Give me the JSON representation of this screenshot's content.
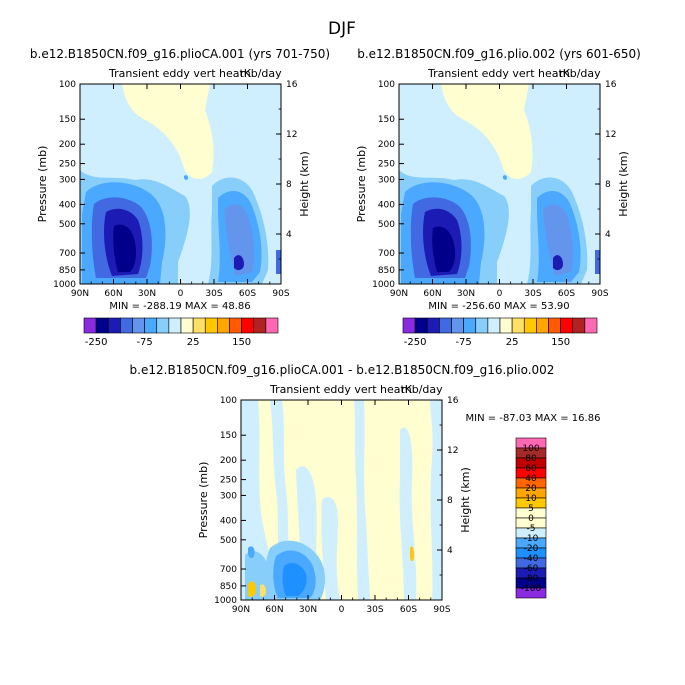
{
  "page_title": "DJF",
  "chart_data": [
    {
      "type": "heatmap",
      "case_title": "b.e12.B1850CN.f09_g16.plioCA.001 (yrs 701-750)",
      "title": "Transient eddy vert heatK",
      "units": "mb/day",
      "xlabel": "",
      "ylabel": "Pressure (mb)",
      "y2label": "Height (km)",
      "x_ticks": [
        "90N",
        "60N",
        "30N",
        "0",
        "30S",
        "60S",
        "90S"
      ],
      "y_ticks": [
        "100",
        "150",
        "200",
        "250",
        "300",
        "400",
        "500",
        "700",
        "850",
        "1000"
      ],
      "y2_ticks": [
        "4",
        "8",
        "12",
        "16"
      ],
      "stats": "MIN = -288.19   MAX =  48.86",
      "colorbar_labels": [
        "-250",
        "-75",
        "25",
        "150"
      ]
    },
    {
      "type": "heatmap",
      "case_title": "b.e12.B1850CN.f09_g16.plio.002 (yrs 601-650)",
      "title": "Transient eddy vert heatK",
      "units": "mb/day",
      "xlabel": "",
      "ylabel": "Pressure (mb)",
      "y2label": "Height (km)",
      "x_ticks": [
        "90N",
        "60N",
        "30N",
        "0",
        "30S",
        "60S",
        "90S"
      ],
      "y_ticks": [
        "100",
        "150",
        "200",
        "250",
        "300",
        "400",
        "500",
        "700",
        "850",
        "1000"
      ],
      "y2_ticks": [
        "4",
        "8",
        "12",
        "16"
      ],
      "stats": "MIN = -256.60   MAX =  53.90",
      "colorbar_labels": [
        "-250",
        "-75",
        "25",
        "150"
      ]
    },
    {
      "type": "heatmap",
      "case_title": "b.e12.B1850CN.f09_g16.plioCA.001 - b.e12.B1850CN.f09_g16.plio.002",
      "title": "Transient eddy vert heatK",
      "units": "mb/day",
      "xlabel": "",
      "ylabel": "Pressure (mb)",
      "y2label": "Height (km)",
      "x_ticks": [
        "90N",
        "60N",
        "30N",
        "0",
        "30S",
        "60S",
        "90S"
      ],
      "y_ticks": [
        "100",
        "150",
        "200",
        "250",
        "300",
        "400",
        "500",
        "700",
        "850",
        "1000"
      ],
      "y2_ticks": [
        "4",
        "8",
        "12",
        "16"
      ],
      "stats": "MIN = -87.03   MAX =  16.86",
      "colorbar_labels": [
        "100",
        "80",
        "60",
        "40",
        "20",
        "10",
        "5",
        "0",
        "-5",
        "-10",
        "-20",
        "-40",
        "-60",
        "-80",
        "-100"
      ]
    }
  ],
  "palettes": {
    "absolute": [
      "#8a2be2",
      "#00008b",
      "#1c1cb4",
      "#4169e1",
      "#6495ed",
      "#4aa8ff",
      "#87cefa",
      "#cfefff",
      "#fffed0",
      "#ffe066",
      "#ffc800",
      "#ffa500",
      "#ff5a00",
      "#ff0000",
      "#b22222",
      "#ff69b4"
    ],
    "difference": [
      "#a52a2a",
      "#c00000",
      "#ff0000",
      "#ff6600",
      "#ffa500",
      "#ffc800",
      "#fffed0",
      "#fffed0",
      "#cfefff",
      "#4aa8ff",
      "#1e90ff",
      "#4169e1",
      "#1c1cb4",
      "#00008b",
      "#8a2be2"
    ]
  }
}
